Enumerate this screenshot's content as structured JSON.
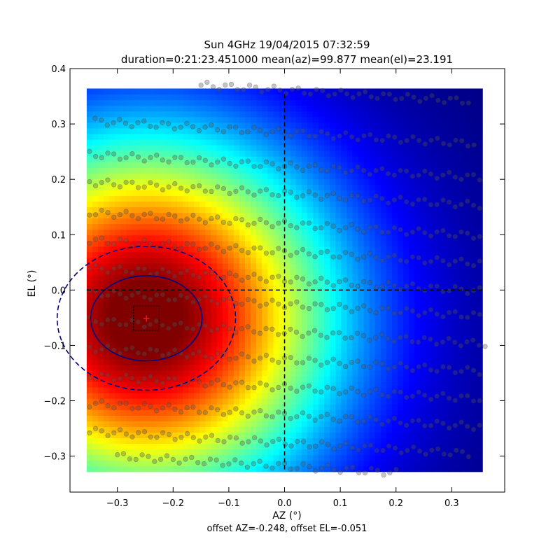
{
  "chart_data": {
    "type": "heatmap",
    "title": "Sun 4GHz 19/04/2015 07:32:59",
    "subtitle": "duration=0:21:23.451000 mean(az)=99.877 mean(el)=23.191",
    "xlabel": "AZ (°)",
    "ylabel": "EL (°)",
    "footer": "offset AZ=-0.248, offset EL=-0.051",
    "xlim": [
      -0.385,
      0.395
    ],
    "ylim": [
      -0.365,
      0.4
    ],
    "xticks": [
      -0.3,
      -0.2,
      -0.1,
      0.0,
      0.1,
      0.2,
      0.3
    ],
    "xtick_labels": [
      "−0.3",
      "−0.2",
      "−0.1",
      "0.0",
      "0.1",
      "0.2",
      "0.3"
    ],
    "yticks": [
      -0.3,
      -0.2,
      -0.1,
      0.0,
      0.1,
      0.2,
      0.3,
      0.4
    ],
    "ytick_labels": [
      "−0.3",
      "−0.2",
      "−0.1",
      "0.0",
      "0.1",
      "0.2",
      "0.3",
      "0.4"
    ],
    "heatmap_extent": {
      "x": [
        -0.355,
        0.355
      ],
      "y": [
        -0.328,
        0.364
      ]
    },
    "colormap": "jet",
    "beam": {
      "center_az": -0.248,
      "center_el": -0.051,
      "inner_contour": {
        "rx": 0.1,
        "ry": 0.077
      },
      "outer_contour": {
        "rx": 0.16,
        "ry": 0.13
      },
      "center_box": {
        "half_width": 0.023,
        "half_height": 0.022
      }
    },
    "reference_lines": {
      "x": 0.0,
      "y": 0.0
    },
    "scan_points": {
      "marker": "circle",
      "color": "#555555",
      "opacity": 0.35,
      "rows": [
        {
          "el0": 0.37,
          "az0": -0.15,
          "az1": 0.33
        },
        {
          "el0": 0.305,
          "az0": -0.34,
          "az1": 0.34
        },
        {
          "el0": 0.245,
          "az0": -0.35,
          "az1": 0.35
        },
        {
          "el0": 0.195,
          "az0": -0.35,
          "az1": 0.35
        },
        {
          "el0": 0.14,
          "az0": -0.35,
          "az1": 0.35
        },
        {
          "el0": 0.09,
          "az0": -0.35,
          "az1": 0.35
        },
        {
          "el0": 0.04,
          "az0": -0.35,
          "az1": 0.35
        },
        {
          "el0": -0.005,
          "az0": -0.35,
          "az1": 0.35
        },
        {
          "el0": -0.055,
          "az0": -0.35,
          "az1": 0.36
        },
        {
          "el0": -0.105,
          "az0": -0.35,
          "az1": 0.35
        },
        {
          "el0": -0.155,
          "az0": -0.35,
          "az1": 0.35
        },
        {
          "el0": -0.205,
          "az0": -0.35,
          "az1": 0.35
        },
        {
          "el0": -0.255,
          "az0": -0.35,
          "az1": 0.33
        },
        {
          "el0": -0.3,
          "az0": -0.3,
          "az1": 0.2
        }
      ],
      "slope": -0.17
    },
    "grid": false
  }
}
